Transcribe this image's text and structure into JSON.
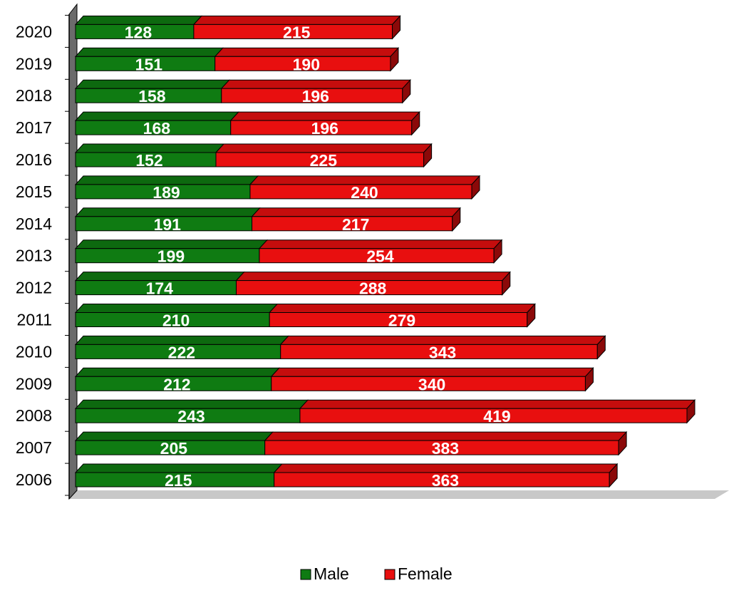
{
  "chart_data": {
    "type": "bar",
    "orientation": "horizontal",
    "stacked": true,
    "style": "3d",
    "categories": [
      "2006",
      "2007",
      "2008",
      "2009",
      "2010",
      "2011",
      "2012",
      "2013",
      "2014",
      "2015",
      "2016",
      "2017",
      "2018",
      "2019",
      "2020"
    ],
    "series": [
      {
        "name": "Male",
        "color": "#0f7b12",
        "values": [
          215,
          205,
          243,
          212,
          222,
          210,
          174,
          199,
          191,
          189,
          152,
          168,
          158,
          151,
          128
        ]
      },
      {
        "name": "Female",
        "color": "#e80f0f",
        "values": [
          363,
          383,
          419,
          340,
          343,
          279,
          288,
          254,
          217,
          240,
          225,
          196,
          196,
          190,
          215
        ]
      }
    ],
    "title": "",
    "xlabel": "",
    "ylabel": "",
    "legend_position": "bottom",
    "grid": false,
    "data_labels": true
  }
}
